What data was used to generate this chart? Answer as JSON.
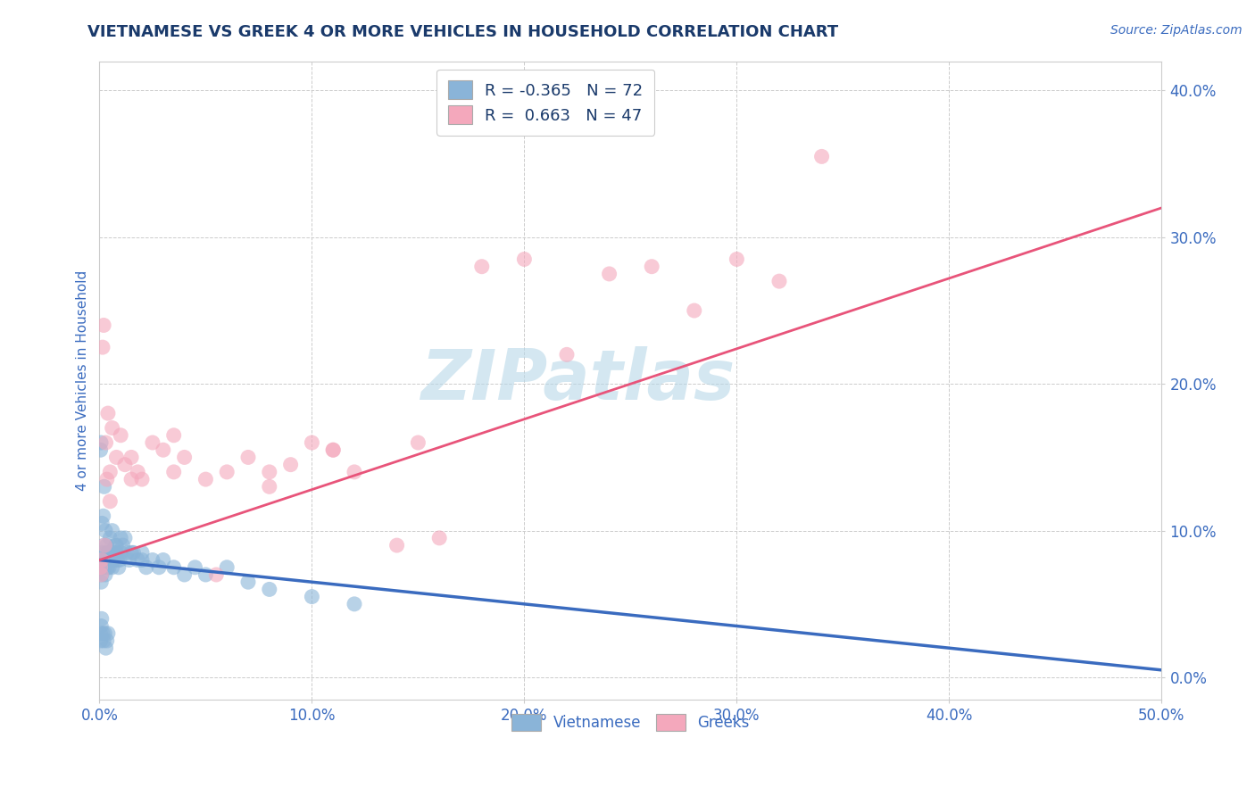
{
  "title": "VIETNAMESE VS GREEK 4 OR MORE VEHICLES IN HOUSEHOLD CORRELATION CHART",
  "source_text": "Source: ZipAtlas.com",
  "ylabel": "4 or more Vehicles in Household",
  "xlim": [
    0.0,
    50.0
  ],
  "ylim": [
    -1.5,
    42.0
  ],
  "legend_r_blue": "-0.365",
  "legend_n_blue": "72",
  "legend_r_pink": "0.663",
  "legend_n_pink": "47",
  "blue_color": "#8ab4d8",
  "pink_color": "#f4a8bc",
  "trend_blue_color": "#3a6bbf",
  "trend_pink_color": "#e8547a",
  "watermark": "ZIPatlas",
  "watermark_color": "#b8d8e8",
  "background_color": "#ffffff",
  "grid_color": "#cccccc",
  "title_color": "#1a3a6b",
  "axis_label_color": "#3a6bbf",
  "tick_label_color": "#3a6bbf",
  "blue_x": [
    0.05,
    0.07,
    0.08,
    0.1,
    0.12,
    0.15,
    0.18,
    0.2,
    0.22,
    0.25,
    0.28,
    0.3,
    0.32,
    0.35,
    0.38,
    0.4,
    0.42,
    0.45,
    0.48,
    0.5,
    0.55,
    0.6,
    0.65,
    0.7,
    0.75,
    0.8,
    0.85,
    0.9,
    0.95,
    1.0,
    1.1,
    1.2,
    1.3,
    1.4,
    1.6,
    1.8,
    2.0,
    2.2,
    2.5,
    2.8,
    3.0,
    3.5,
    4.0,
    4.5,
    5.0,
    6.0,
    7.0,
    8.0,
    10.0,
    12.0,
    0.05,
    0.06,
    0.08,
    0.1,
    0.15,
    0.2,
    0.25,
    0.3,
    0.35,
    0.4,
    0.05,
    0.07,
    0.12,
    0.18,
    0.22,
    0.28,
    0.5,
    0.6,
    0.8,
    1.0,
    1.5,
    2.0
  ],
  "blue_y": [
    7.5,
    8.0,
    6.5,
    7.0,
    8.5,
    7.5,
    8.0,
    9.0,
    7.5,
    8.0,
    7.0,
    8.5,
    8.0,
    9.0,
    7.5,
    8.0,
    8.5,
    7.5,
    8.0,
    8.5,
    8.0,
    7.5,
    8.5,
    8.0,
    9.0,
    8.5,
    8.0,
    7.5,
    8.0,
    8.5,
    9.0,
    9.5,
    8.5,
    8.0,
    8.5,
    8.0,
    8.5,
    7.5,
    8.0,
    7.5,
    8.0,
    7.5,
    7.0,
    7.5,
    7.0,
    7.5,
    6.5,
    6.0,
    5.5,
    5.0,
    3.0,
    2.5,
    3.5,
    4.0,
    3.0,
    2.5,
    3.0,
    2.0,
    2.5,
    3.0,
    15.5,
    16.0,
    10.5,
    11.0,
    13.0,
    10.0,
    9.5,
    10.0,
    9.0,
    9.5,
    8.5,
    8.0
  ],
  "pink_x": [
    0.05,
    0.08,
    0.1,
    0.15,
    0.2,
    0.25,
    0.3,
    0.35,
    0.4,
    0.5,
    0.6,
    0.8,
    1.0,
    1.2,
    1.5,
    1.8,
    2.0,
    2.5,
    3.0,
    3.5,
    4.0,
    5.0,
    6.0,
    7.0,
    8.0,
    9.0,
    10.0,
    11.0,
    12.0,
    14.0,
    16.0,
    18.0,
    20.0,
    22.0,
    24.0,
    26.0,
    28.0,
    30.0,
    32.0,
    34.0,
    0.5,
    1.5,
    3.5,
    5.5,
    8.0,
    11.0,
    15.0
  ],
  "pink_y": [
    7.5,
    7.0,
    8.0,
    22.5,
    24.0,
    9.0,
    16.0,
    13.5,
    18.0,
    14.0,
    17.0,
    15.0,
    16.5,
    14.5,
    15.0,
    14.0,
    13.5,
    16.0,
    15.5,
    14.0,
    15.0,
    13.5,
    14.0,
    15.0,
    13.0,
    14.5,
    16.0,
    15.5,
    14.0,
    9.0,
    9.5,
    28.0,
    28.5,
    22.0,
    27.5,
    28.0,
    25.0,
    28.5,
    27.0,
    35.5,
    12.0,
    13.5,
    16.5,
    7.0,
    14.0,
    15.5,
    16.0
  ]
}
